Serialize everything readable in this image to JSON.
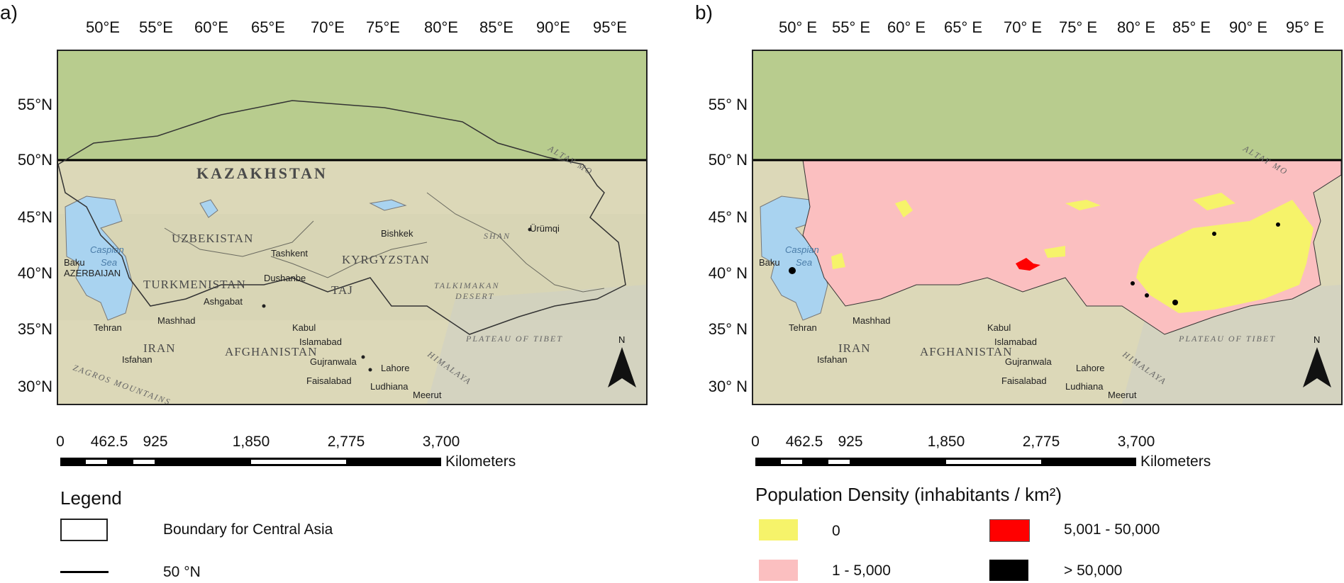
{
  "panel_a": {
    "label": "a)",
    "lon_labels": [
      "50°E",
      "55°E",
      "60°E",
      "65°E",
      "70°E",
      "75°E",
      "80°E",
      "85°E",
      "90°E",
      "95°E"
    ],
    "lat_labels": [
      "55°N",
      "50°N",
      "45°N",
      "40°N",
      "35°N",
      "30°N"
    ],
    "scale": {
      "ticks": [
        "0",
        "462.5",
        "925",
        "1,850",
        "2,775",
        "3,700"
      ],
      "units": "Kilometers"
    },
    "legend": {
      "title": "Legend",
      "items": [
        {
          "label": "Boundary for Central Asia",
          "symbol": "outline-box"
        },
        {
          "label": "50 °N",
          "symbol": "line"
        }
      ]
    }
  },
  "panel_b": {
    "label": "b)",
    "lon_labels": [
      "50° E",
      "55° E",
      "60° E",
      "65° E",
      "70° E",
      "75° E",
      "80° E",
      "85° E",
      "90° E",
      "95° E"
    ],
    "lat_labels": [
      "55° N",
      "50° N",
      "45° N",
      "40° N",
      "35° N",
      "30° N"
    ],
    "scale": {
      "ticks": [
        "0",
        "462.5",
        "925",
        "1,850",
        "2,775",
        "3,700"
      ],
      "units": "Kilometers"
    },
    "legend": {
      "title": "Population Density (inhabitants / km²)",
      "items": [
        {
          "label": "0",
          "color": "#f6f36a"
        },
        {
          "label": "5,001 - 50,000",
          "color": "#ff0000"
        },
        {
          "label": "1 - 5,000",
          "color": "#fbbfc0"
        },
        {
          "label": "> 50,000",
          "color": "#000000"
        }
      ]
    }
  },
  "map_labels": {
    "kazakhstan": "KAZAKHSTAN",
    "uzbekistan": "UZBEKISTAN",
    "turkmenistan": "TURKMENISTAN",
    "kyrgyzstan": "KYRGYZSTAN",
    "tajikistan": "TAJ",
    "iran": "IRAN",
    "afghanistan": "AFGHANISTAN",
    "caspian": "Caspian",
    "sea": "Sea",
    "baku": "Baku",
    "azerbaijan": "AZERBAIJAN",
    "tashkent": "Tashkent",
    "bishkek": "Bishkek",
    "dushanbe": "Dushanbe",
    "ashgabat": "Ashgabat",
    "urumqi": "Ürümqi",
    "mashhad": "Mashhad",
    "tehran": "Tehran",
    "isfahan": "Isfahan",
    "kabul": "Kabul",
    "islamabad": "Islamabad",
    "gujranwala": "Gujranwala",
    "lahore": "Lahore",
    "faisalabad": "Faisalabad",
    "ludhiana": "Ludhiana",
    "meerut": "Meerut",
    "taklimakan": "TALKIMAKAN",
    "desert": "DESERT",
    "plateau": "PLATEAU OF TIBET",
    "himalaya": "HIMALAYA",
    "zagros": "ZAGROS MOUNTAINS",
    "altay": "ALTAY MO",
    "shan": "SHAN",
    "north": "N"
  },
  "colors": {
    "water": "#a9d3f0",
    "north_band": "#b8cc8e",
    "land": "#dcd8b8",
    "density_zero": "#f6f36a",
    "density_low": "#fbbfc0",
    "density_mid": "#ff0000",
    "density_high": "#000000"
  }
}
